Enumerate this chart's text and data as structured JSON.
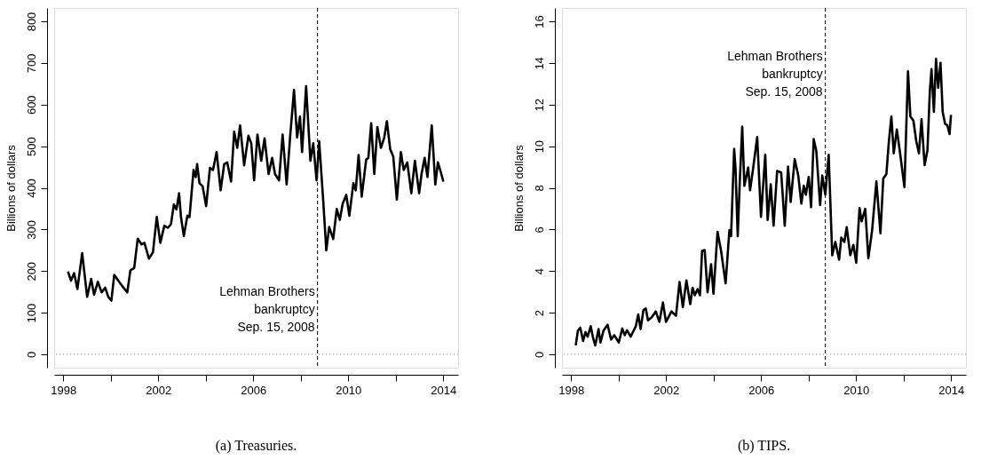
{
  "chart_data": [
    {
      "type": "line",
      "title": "(a)  Treasuries.",
      "ylabel": "Billions of dollars",
      "xlim": [
        1997.62,
        2014.63
      ],
      "ylim": [
        -32,
        832
      ],
      "xticks": [
        1998,
        {
          "value": 2000,
          "label": null
        },
        2002,
        {
          "value": 2004,
          "label": null
        },
        2006,
        {
          "value": 2008,
          "label": null
        },
        2010,
        {
          "value": 2012,
          "label": null
        },
        2014
      ],
      "yticks": [
        0,
        100,
        200,
        300,
        400,
        500,
        600,
        700,
        800
      ],
      "grid": false,
      "ref_lines": [
        {
          "axis": "x",
          "value": 2008.71,
          "label": "Lehman Brothers\nbankruptcy\nSep. 15, 2008",
          "line_style": "dashed",
          "color": "#000000"
        },
        {
          "axis": "y",
          "value": 0,
          "label": null,
          "line_style": "dotted",
          "color": "#808080"
        }
      ],
      "series": [
        {
          "color": "#000000",
          "x": [
            1998.2,
            1998.33,
            1998.46,
            1998.6,
            1998.8,
            1999.01,
            1999.18,
            1999.3,
            1999.46,
            1999.62,
            1999.77,
            1999.9,
            2000.03,
            2000.15,
            2000.32,
            2000.5,
            2000.7,
            2000.83,
            2000.99,
            2001.14,
            2001.3,
            2001.42,
            2001.61,
            2001.78,
            2001.94,
            2002.09,
            2002.26,
            2002.41,
            2002.54,
            2002.66,
            2002.77,
            2002.88,
            2002.96,
            2003.08,
            2003.23,
            2003.32,
            2003.49,
            2003.58,
            2003.64,
            2003.74,
            2003.87,
            2004.02,
            2004.18,
            2004.31,
            2004.46,
            2004.63,
            2004.78,
            2004.91,
            2005.07,
            2005.2,
            2005.33,
            2005.45,
            2005.62,
            2005.8,
            2005.92,
            2006.04,
            2006.18,
            2006.34,
            2006.48,
            2006.65,
            2006.8,
            2006.92,
            2007.09,
            2007.24,
            2007.41,
            2007.56,
            2007.72,
            2007.85,
            2007.97,
            2008.06,
            2008.23,
            2008.41,
            2008.53,
            2008.67,
            2008.78,
            2008.95,
            2009.08,
            2009.2,
            2009.37,
            2009.52,
            2009.65,
            2009.77,
            2009.92,
            2010.05,
            2010.22,
            2010.32,
            2010.44,
            2010.57,
            2010.76,
            2010.85,
            2010.97,
            2011.1,
            2011.23,
            2011.38,
            2011.52,
            2011.63,
            2011.77,
            2011.9,
            2012.05,
            2012.22,
            2012.34,
            2012.49,
            2012.66,
            2012.81,
            2012.99,
            2013.09,
            2013.22,
            2013.34,
            2013.52,
            2013.67,
            2013.78,
            2013.89,
            2014.01
          ],
          "values": [
            199,
            177,
            195,
            157,
            243,
            138,
            181,
            143,
            174,
            149,
            160,
            138,
            129,
            191,
            177,
            163,
            149,
            202,
            207,
            278,
            264,
            268,
            230,
            245,
            330,
            268,
            309,
            304,
            313,
            360,
            348,
            387,
            330,
            284,
            333,
            330,
            443,
            426,
            457,
            411,
            404,
            356,
            448,
            443,
            486,
            394,
            457,
            461,
            415,
            535,
            496,
            550,
            454,
            525,
            507,
            418,
            528,
            465,
            519,
            433,
            472,
            433,
            418,
            528,
            408,
            525,
            635,
            521,
            571,
            486,
            644,
            465,
            507,
            418,
            512,
            369,
            250,
            306,
            277,
            349,
            323,
            362,
            383,
            333,
            411,
            394,
            479,
            379,
            468,
            472,
            555,
            433,
            546,
            496,
            521,
            560,
            493,
            475,
            372,
            486,
            443,
            461,
            387,
            465,
            387,
            433,
            472,
            426,
            550,
            408,
            461,
            440,
            415
          ]
        }
      ]
    },
    {
      "type": "line",
      "title": "(b)  TIPS.",
      "ylabel": "Billions of dollars",
      "xlim": [
        1997.62,
        2014.63
      ],
      "ylim": [
        -0.64,
        16.64
      ],
      "xticks": [
        1998,
        {
          "value": 2000,
          "label": null
        },
        2002,
        {
          "value": 2004,
          "label": null
        },
        2006,
        {
          "value": 2008,
          "label": null
        },
        2010,
        {
          "value": 2012,
          "label": null
        },
        2014
      ],
      "yticks": [
        0,
        2,
        4,
        6,
        8,
        10,
        12,
        14,
        16
      ],
      "grid": false,
      "ref_lines": [
        {
          "axis": "x",
          "value": 2008.71,
          "label": "Lehman Brothers\nbankruptcy\nSep. 15, 2008",
          "line_style": "dashed",
          "color": "#000000"
        },
        {
          "axis": "y",
          "value": 0,
          "label": null,
          "line_style": "dotted",
          "color": "#808080"
        }
      ],
      "series": [
        {
          "color": "#000000",
          "x": [
            1998.2,
            1998.29,
            1998.39,
            1998.51,
            1998.61,
            1998.7,
            1998.83,
            1998.93,
            1999.02,
            1999.16,
            1999.24,
            1999.37,
            1999.54,
            1999.69,
            1999.82,
            2000.01,
            2000.16,
            2000.26,
            2000.36,
            2000.51,
            2000.73,
            2000.83,
            2000.93,
            2001.05,
            2001.15,
            2001.24,
            2001.4,
            2001.57,
            2001.72,
            2001.87,
            2002.0,
            2002.1,
            2002.23,
            2002.42,
            2002.57,
            2002.71,
            2002.86,
            2003.02,
            2003.12,
            2003.21,
            2003.33,
            2003.43,
            2003.52,
            2003.63,
            2003.75,
            2003.9,
            2004.0,
            2004.17,
            2004.32,
            2004.51,
            2004.67,
            2004.74,
            2004.87,
            2004.93,
            2005.02,
            2005.11,
            2005.21,
            2005.3,
            2005.46,
            2005.54,
            2005.67,
            2005.84,
            2006.0,
            2006.18,
            2006.28,
            2006.41,
            2006.53,
            2006.68,
            2006.85,
            2007.0,
            2007.14,
            2007.25,
            2007.42,
            2007.57,
            2007.7,
            2007.8,
            2007.89,
            2008.01,
            2008.11,
            2008.22,
            2008.33,
            2008.49,
            2008.58,
            2008.71,
            2008.85,
            2009.0,
            2009.13,
            2009.29,
            2009.38,
            2009.51,
            2009.61,
            2009.76,
            2009.89,
            2010.01,
            2010.15,
            2010.24,
            2010.39,
            2010.52,
            2010.68,
            2010.86,
            2011.03,
            2011.15,
            2011.28,
            2011.38,
            2011.49,
            2011.59,
            2011.72,
            2011.85,
            2012.04,
            2012.19,
            2012.29,
            2012.42,
            2012.54,
            2012.65,
            2012.76,
            2012.89,
            2013.01,
            2013.11,
            2013.18,
            2013.28,
            2013.37,
            2013.46,
            2013.56,
            2013.65,
            2013.75,
            2013.85,
            2013.94,
            2014.0
          ],
          "values": [
            0.43,
            1.14,
            1.28,
            0.64,
            1.07,
            0.85,
            1.35,
            0.78,
            0.43,
            1.21,
            0.57,
            1.14,
            1.42,
            0.71,
            0.92,
            0.57,
            1.24,
            0.92,
            1.16,
            0.85,
            1.35,
            1.92,
            1.21,
            2.13,
            2.2,
            1.63,
            1.78,
            2.06,
            1.56,
            2.49,
            1.56,
            1.78,
            2.06,
            1.85,
            3.48,
            2.27,
            3.55,
            2.41,
            3.2,
            2.84,
            3.13,
            2.84,
            4.97,
            5.01,
            2.98,
            4.33,
            2.91,
            5.89,
            4.97,
            3.41,
            5.97,
            5.68,
            9.87,
            8.88,
            5.68,
            8.38,
            10.94,
            8.1,
            8.98,
            7.88,
            8.95,
            10.44,
            6.61,
            9.59,
            6.46,
            8.17,
            6.18,
            8.81,
            8.74,
            6.18,
            9.02,
            7.32,
            9.38,
            8.59,
            7.24,
            8.1,
            7.67,
            8.52,
            7.07,
            10.34,
            9.77,
            7.17,
            8.59,
            7.67,
            9.59,
            4.76,
            5.4,
            4.55,
            5.61,
            5.4,
            6.11,
            4.76,
            5.26,
            4.4,
            7.03,
            6.39,
            6.99,
            4.62,
            5.97,
            8.31,
            5.82,
            8.45,
            8.66,
            10.16,
            11.43,
            9.66,
            10.8,
            9.73,
            8.03,
            13.6,
            11.43,
            11.22,
            10.23,
            9.66,
            11.29,
            9.09,
            9.8,
            12.64,
            13.7,
            11.65,
            14.2,
            12.8,
            14.0,
            11.65,
            11.08,
            11.0,
            10.58,
            11.5
          ]
        }
      ]
    }
  ]
}
